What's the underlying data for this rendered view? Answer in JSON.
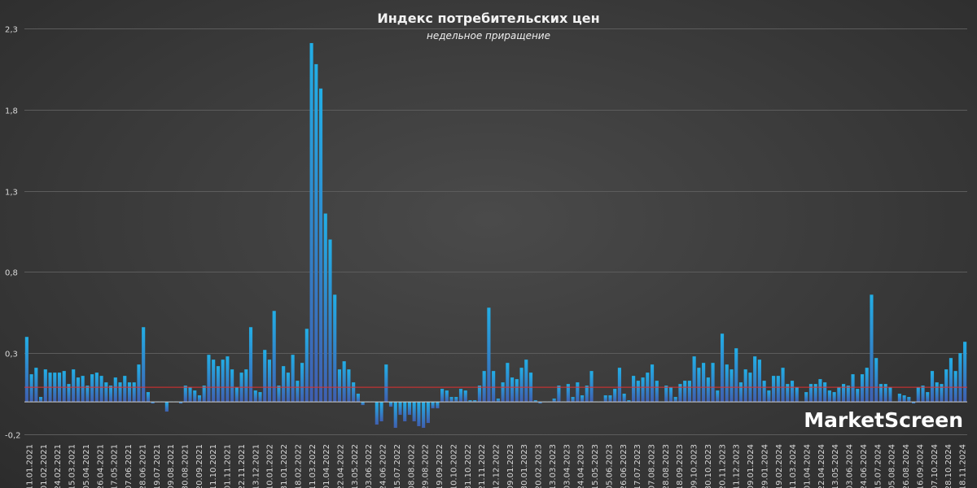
{
  "chart_data": {
    "type": "bar",
    "title": "Индекс потребительских цен",
    "subtitle": "недельное приращение",
    "brand": "MarketScreen",
    "ylim": [
      -0.2,
      2.3
    ],
    "yticks": [
      "-0,2",
      "0,3",
      "0,8",
      "1,3",
      "1,8",
      "2,3"
    ],
    "ytick_values": [
      -0.2,
      0.3,
      0.8,
      1.3,
      1.8,
      2.3
    ],
    "grid": true,
    "reference_line": 0.09,
    "colors": {
      "bar_top": "#22aee6",
      "bar_bottom": "#3f5fb0",
      "reference_line": "#e03030",
      "grid": "#5c5c5c"
    },
    "xtick_labels": [
      "11.01.2021",
      "01.02.2021",
      "24.02.2021",
      "15.03.2021",
      "05.04.2021",
      "26.04.2021",
      "17.05.2021",
      "07.06.2021",
      "28.06.2021",
      "19.07.2021",
      "09.08.2021",
      "30.08.2021",
      "20.09.2021",
      "11.10.2021",
      "01.11.2021",
      "22.11.2021",
      "13.12.2021",
      "10.01.2022",
      "31.01.2022",
      "18.02.2022",
      "11.03.2022",
      "01.04.2022",
      "22.04.2022",
      "13.05.2022",
      "03.06.2022",
      "24.06.2022",
      "15.07.2022",
      "08.08.2022",
      "29.08.2022",
      "19.09.2022",
      "10.10.2022",
      "31.10.2022",
      "21.11.2022",
      "12.12.2022",
      "09.01.2023",
      "30.01.2023",
      "20.02.2023",
      "13.03.2023",
      "03.04.2023",
      "24.04.2023",
      "15.05.2023",
      "05.06.2023",
      "26.06.2023",
      "17.07.2023",
      "07.08.2023",
      "28.08.2023",
      "18.09.2023",
      "09.10.2023",
      "30.10.2023",
      "20.11.2023",
      "11.12.2023",
      "09.01.2024",
      "29.01.2024",
      "19.02.2024",
      "11.03.2024",
      "01.04.2024",
      "22.04.2024",
      "13.05.2024",
      "03.06.2024",
      "24.06.2024",
      "15.07.2024",
      "05.08.2024",
      "26.08.2024",
      "16.09.2024",
      "07.10.2024",
      "28.10.2024",
      "18.11.2024"
    ],
    "values": [
      0.4,
      0.17,
      0.21,
      0.03,
      0.2,
      0.18,
      0.18,
      0.18,
      0.19,
      0.11,
      0.2,
      0.15,
      0.16,
      0.1,
      0.17,
      0.18,
      0.16,
      0.12,
      0.1,
      0.15,
      0.12,
      0.16,
      0.12,
      0.12,
      0.23,
      0.46,
      0.06,
      -0.01,
      0.0,
      0.0,
      -0.06,
      0.0,
      0.0,
      -0.01,
      0.1,
      0.09,
      0.07,
      0.04,
      0.1,
      0.29,
      0.26,
      0.22,
      0.26,
      0.28,
      0.2,
      0.09,
      0.18,
      0.2,
      0.46,
      0.07,
      0.06,
      0.32,
      0.26,
      0.56,
      0.1,
      0.22,
      0.18,
      0.29,
      0.13,
      0.24,
      0.45,
      2.21,
      2.08,
      1.93,
      1.16,
      1.0,
      0.66,
      0.2,
      0.25,
      0.2,
      0.12,
      0.05,
      -0.02,
      0.0,
      0.0,
      -0.14,
      -0.12,
      0.23,
      -0.03,
      -0.16,
      -0.08,
      -0.12,
      -0.08,
      -0.12,
      -0.15,
      -0.16,
      -0.13,
      -0.04,
      -0.04,
      0.08,
      0.07,
      0.03,
      0.03,
      0.08,
      0.07,
      0.01,
      0.01,
      0.1,
      0.19,
      0.58,
      0.19,
      0.02,
      0.12,
      0.24,
      0.15,
      0.14,
      0.21,
      0.26,
      0.18,
      0.01,
      -0.01,
      0.0,
      0.0,
      0.02,
      0.1,
      0.0,
      0.11,
      0.03,
      0.12,
      0.04,
      0.1,
      0.19,
      0.0,
      0.0,
      0.04,
      0.04,
      0.08,
      0.21,
      0.05,
      0.01,
      0.16,
      0.13,
      0.15,
      0.18,
      0.23,
      0.13,
      0.0,
      0.1,
      0.09,
      0.03,
      0.11,
      0.13,
      0.13,
      0.28,
      0.21,
      0.24,
      0.15,
      0.24,
      0.07,
      0.42,
      0.23,
      0.2,
      0.33,
      0.12,
      0.2,
      0.18,
      0.28,
      0.26,
      0.13,
      0.07,
      0.16,
      0.16,
      0.21,
      0.11,
      0.13,
      0.09,
      0.0,
      0.06,
      0.11,
      0.11,
      0.14,
      0.12,
      0.07,
      0.06,
      0.09,
      0.11,
      0.1,
      0.17,
      0.08,
      0.17,
      0.21,
      0.66,
      0.27,
      0.11,
      0.11,
      0.09,
      0.0,
      0.05,
      0.04,
      0.03,
      -0.01,
      0.09,
      0.1,
      0.06,
      0.19,
      0.12,
      0.11,
      0.2,
      0.27,
      0.19,
      0.3,
      0.37
    ]
  }
}
